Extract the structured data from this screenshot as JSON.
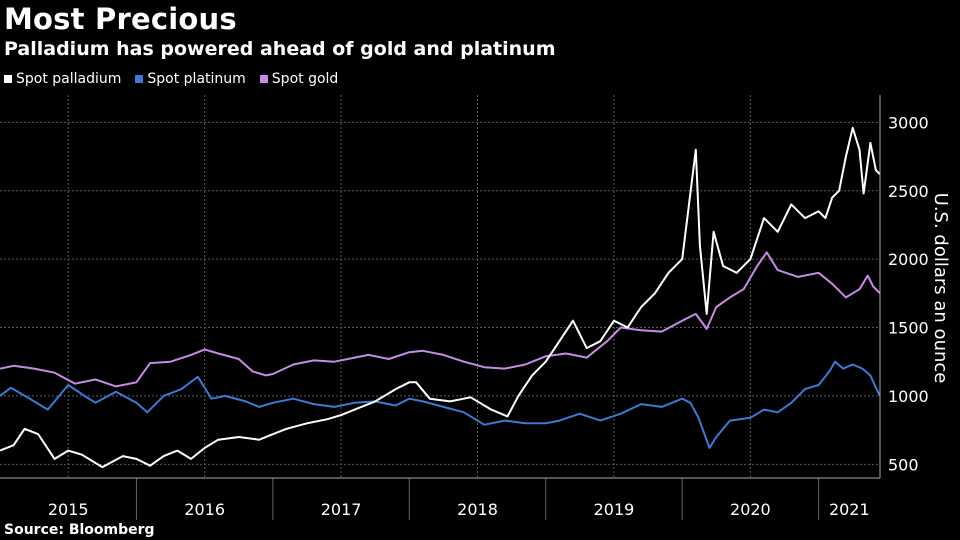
{
  "header": {
    "title": "Most Precious",
    "subtitle": "Palladium has powered ahead of gold and platinum"
  },
  "footer": {
    "source": "Source: Bloomberg"
  },
  "colors": {
    "palladium": "#ffffff",
    "platinum": "#3a7bd5",
    "gold": "#c78be6",
    "grid": "#5a5a5a",
    "background": "#000000"
  },
  "chart_data": {
    "type": "line",
    "title": "Most Precious",
    "subtitle": "Palladium has powered ahead of gold and platinum",
    "ylabel": "U.S. dollars an ounce",
    "ylim": [
      400,
      3200
    ],
    "yticks": [
      500,
      1000,
      1500,
      2000,
      2500,
      3000
    ],
    "xlim": [
      2015.0,
      2021.45
    ],
    "xticks": [
      {
        "label": "2015",
        "pos": 2015.0
      },
      {
        "label": "2016",
        "pos": 2016.0
      },
      {
        "label": "2017",
        "pos": 2017.0
      },
      {
        "label": "2018",
        "pos": 2018.0
      },
      {
        "label": "2019",
        "pos": 2019.0
      },
      {
        "label": "2020",
        "pos": 2020.0
      },
      {
        "label": "2021",
        "pos": 2021.0
      }
    ],
    "grid": true,
    "legend": "top-left",
    "series": [
      {
        "name": "Spot palladium",
        "color": "#ffffff",
        "points": [
          [
            2015.0,
            600
          ],
          [
            2015.1,
            640
          ],
          [
            2015.18,
            760
          ],
          [
            2015.28,
            720
          ],
          [
            2015.4,
            540
          ],
          [
            2015.5,
            600
          ],
          [
            2015.6,
            570
          ],
          [
            2015.75,
            480
          ],
          [
            2015.9,
            560
          ],
          [
            2016.0,
            540
          ],
          [
            2016.1,
            490
          ],
          [
            2016.2,
            560
          ],
          [
            2016.3,
            600
          ],
          [
            2016.4,
            540
          ],
          [
            2016.5,
            620
          ],
          [
            2016.6,
            680
          ],
          [
            2016.75,
            700
          ],
          [
            2016.9,
            680
          ],
          [
            2017.0,
            720
          ],
          [
            2017.1,
            760
          ],
          [
            2017.25,
            800
          ],
          [
            2017.4,
            830
          ],
          [
            2017.5,
            860
          ],
          [
            2017.6,
            900
          ],
          [
            2017.75,
            960
          ],
          [
            2017.9,
            1050
          ],
          [
            2018.0,
            1100
          ],
          [
            2018.05,
            1100
          ],
          [
            2018.15,
            980
          ],
          [
            2018.3,
            960
          ],
          [
            2018.45,
            990
          ],
          [
            2018.6,
            900
          ],
          [
            2018.72,
            850
          ],
          [
            2018.8,
            1000
          ],
          [
            2018.9,
            1150
          ],
          [
            2019.0,
            1250
          ],
          [
            2019.1,
            1400
          ],
          [
            2019.2,
            1550
          ],
          [
            2019.3,
            1350
          ],
          [
            2019.4,
            1400
          ],
          [
            2019.5,
            1550
          ],
          [
            2019.6,
            1500
          ],
          [
            2019.7,
            1650
          ],
          [
            2019.8,
            1750
          ],
          [
            2019.9,
            1900
          ],
          [
            2020.0,
            2000
          ],
          [
            2020.05,
            2400
          ],
          [
            2020.1,
            2800
          ],
          [
            2020.13,
            2100
          ],
          [
            2020.18,
            1600
          ],
          [
            2020.23,
            2200
          ],
          [
            2020.3,
            1950
          ],
          [
            2020.4,
            1900
          ],
          [
            2020.5,
            2000
          ],
          [
            2020.6,
            2300
          ],
          [
            2020.7,
            2200
          ],
          [
            2020.8,
            2400
          ],
          [
            2020.9,
            2300
          ],
          [
            2021.0,
            2350
          ],
          [
            2021.05,
            2300
          ],
          [
            2021.1,
            2450
          ],
          [
            2021.15,
            2500
          ],
          [
            2021.2,
            2750
          ],
          [
            2021.25,
            2960
          ],
          [
            2021.3,
            2800
          ],
          [
            2021.33,
            2480
          ],
          [
            2021.38,
            2850
          ],
          [
            2021.42,
            2650
          ],
          [
            2021.45,
            2620
          ]
        ]
      },
      {
        "name": "Spot platinum",
        "color": "#3a7bd5",
        "points": [
          [
            2015.0,
            1000
          ],
          [
            2015.08,
            1060
          ],
          [
            2015.2,
            990
          ],
          [
            2015.35,
            900
          ],
          [
            2015.5,
            1080
          ],
          [
            2015.62,
            1000
          ],
          [
            2015.7,
            950
          ],
          [
            2015.85,
            1030
          ],
          [
            2016.0,
            950
          ],
          [
            2016.08,
            880
          ],
          [
            2016.2,
            1000
          ],
          [
            2016.33,
            1050
          ],
          [
            2016.45,
            1140
          ],
          [
            2016.55,
            980
          ],
          [
            2016.65,
            1000
          ],
          [
            2016.8,
            960
          ],
          [
            2016.9,
            920
          ],
          [
            2017.0,
            950
          ],
          [
            2017.15,
            980
          ],
          [
            2017.3,
            940
          ],
          [
            2017.45,
            920
          ],
          [
            2017.6,
            950
          ],
          [
            2017.75,
            960
          ],
          [
            2017.9,
            930
          ],
          [
            2018.0,
            980
          ],
          [
            2018.1,
            960
          ],
          [
            2018.25,
            920
          ],
          [
            2018.4,
            880
          ],
          [
            2018.55,
            790
          ],
          [
            2018.7,
            820
          ],
          [
            2018.85,
            800
          ],
          [
            2019.0,
            800
          ],
          [
            2019.1,
            820
          ],
          [
            2019.25,
            870
          ],
          [
            2019.4,
            820
          ],
          [
            2019.55,
            870
          ],
          [
            2019.7,
            940
          ],
          [
            2019.85,
            920
          ],
          [
            2020.0,
            980
          ],
          [
            2020.06,
            950
          ],
          [
            2020.12,
            840
          ],
          [
            2020.2,
            620
          ],
          [
            2020.25,
            700
          ],
          [
            2020.35,
            820
          ],
          [
            2020.5,
            840
          ],
          [
            2020.6,
            900
          ],
          [
            2020.7,
            880
          ],
          [
            2020.8,
            950
          ],
          [
            2020.9,
            1050
          ],
          [
            2021.0,
            1080
          ],
          [
            2021.08,
            1180
          ],
          [
            2021.12,
            1250
          ],
          [
            2021.18,
            1200
          ],
          [
            2021.25,
            1230
          ],
          [
            2021.32,
            1200
          ],
          [
            2021.38,
            1150
          ],
          [
            2021.42,
            1060
          ],
          [
            2021.45,
            1000
          ]
        ]
      },
      {
        "name": "Spot gold",
        "color": "#c78be6",
        "points": [
          [
            2015.0,
            1200
          ],
          [
            2015.1,
            1220
          ],
          [
            2015.25,
            1200
          ],
          [
            2015.4,
            1170
          ],
          [
            2015.55,
            1090
          ],
          [
            2015.7,
            1120
          ],
          [
            2015.85,
            1070
          ],
          [
            2016.0,
            1100
          ],
          [
            2016.1,
            1240
          ],
          [
            2016.25,
            1250
          ],
          [
            2016.4,
            1300
          ],
          [
            2016.5,
            1340
          ],
          [
            2016.6,
            1310
          ],
          [
            2016.75,
            1270
          ],
          [
            2016.85,
            1180
          ],
          [
            2016.95,
            1150
          ],
          [
            2017.0,
            1160
          ],
          [
            2017.15,
            1230
          ],
          [
            2017.3,
            1260
          ],
          [
            2017.45,
            1250
          ],
          [
            2017.6,
            1280
          ],
          [
            2017.7,
            1300
          ],
          [
            2017.85,
            1270
          ],
          [
            2018.0,
            1320
          ],
          [
            2018.1,
            1330
          ],
          [
            2018.25,
            1300
          ],
          [
            2018.4,
            1250
          ],
          [
            2018.55,
            1210
          ],
          [
            2018.7,
            1200
          ],
          [
            2018.85,
            1230
          ],
          [
            2019.0,
            1290
          ],
          [
            2019.15,
            1310
          ],
          [
            2019.3,
            1280
          ],
          [
            2019.45,
            1400
          ],
          [
            2019.55,
            1500
          ],
          [
            2019.7,
            1480
          ],
          [
            2019.85,
            1470
          ],
          [
            2020.0,
            1550
          ],
          [
            2020.1,
            1600
          ],
          [
            2020.18,
            1490
          ],
          [
            2020.25,
            1650
          ],
          [
            2020.35,
            1720
          ],
          [
            2020.45,
            1780
          ],
          [
            2020.55,
            1950
          ],
          [
            2020.62,
            2050
          ],
          [
            2020.7,
            1920
          ],
          [
            2020.85,
            1870
          ],
          [
            2021.0,
            1900
          ],
          [
            2021.1,
            1820
          ],
          [
            2021.2,
            1720
          ],
          [
            2021.3,
            1780
          ],
          [
            2021.36,
            1880
          ],
          [
            2021.4,
            1800
          ],
          [
            2021.45,
            1750
          ]
        ]
      }
    ]
  }
}
